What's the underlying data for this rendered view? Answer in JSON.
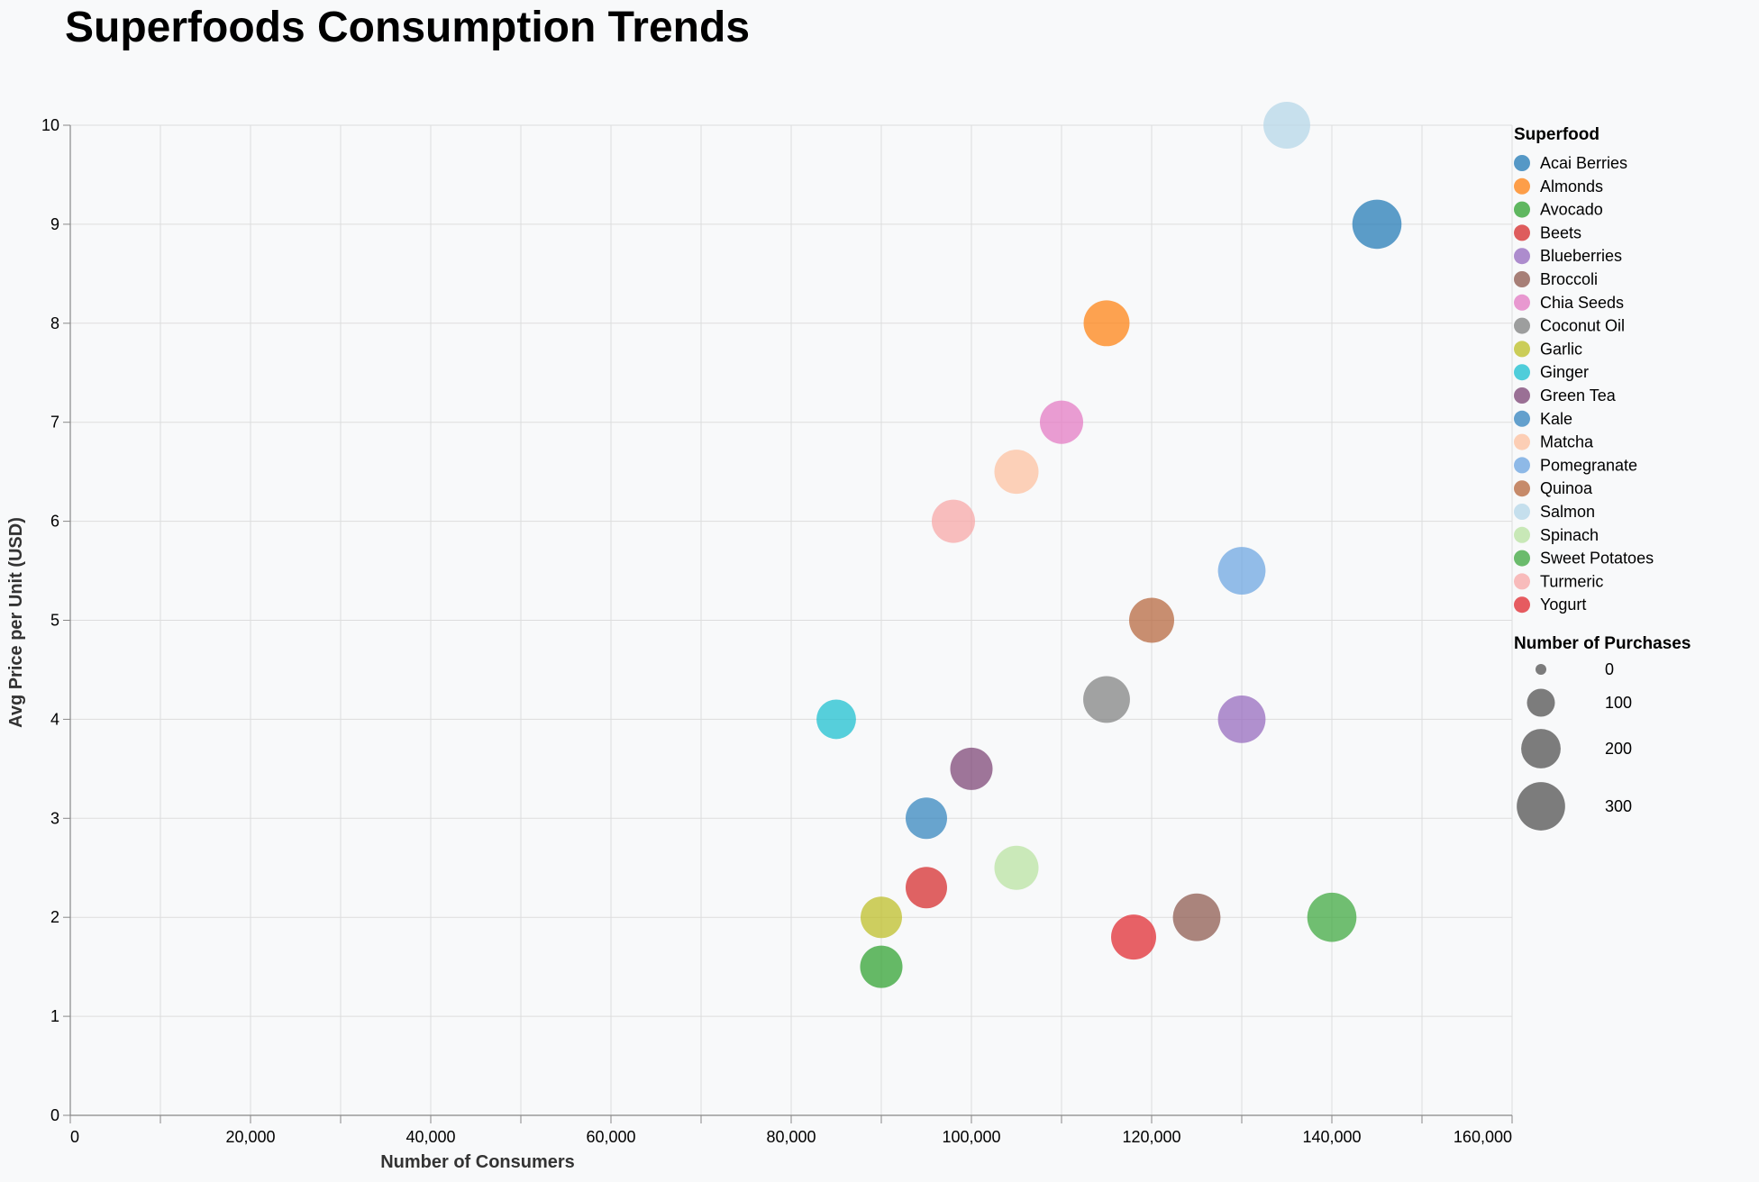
{
  "chart_data": {
    "type": "scatter",
    "title": "Superfoods Consumption Trends",
    "xlabel": "Number of Consumers",
    "ylabel": "Avg Price per Unit (USD)",
    "xlim": [
      0,
      160000
    ],
    "ylim": [
      0,
      10
    ],
    "x_ticks": [
      0,
      20000,
      40000,
      60000,
      80000,
      100000,
      120000,
      140000,
      160000
    ],
    "x_tick_labels": [
      "0",
      "20,000",
      "40,000",
      "60,000",
      "80,000",
      "100,000",
      "120,000",
      "140,000",
      "160,000"
    ],
    "y_ticks": [
      0,
      1,
      2,
      3,
      4,
      5,
      6,
      7,
      8,
      9,
      10
    ],
    "y_tick_labels": [
      "0",
      "1",
      "2",
      "3",
      "4",
      "5",
      "6",
      "7",
      "8",
      "9",
      "10"
    ],
    "grid": true,
    "legend_position": "right",
    "color_legend_title": "Superfood",
    "size_legend_title": "Number of Purchases",
    "size_legend_values": [
      0,
      100,
      200,
      300
    ],
    "size_legend_labels": [
      "0",
      "100",
      "200",
      "300"
    ],
    "size_domain_max": 350,
    "series": [
      {
        "name": "Acai Berries",
        "color": "#1f77b4",
        "x": 145000,
        "y": 9.0,
        "size": 310
      },
      {
        "name": "Almonds",
        "color": "#ff7f0e",
        "x": 115000,
        "y": 8.0,
        "size": 270
      },
      {
        "name": "Avocado",
        "color": "#2ca02c",
        "x": 90000,
        "y": 1.5,
        "size": 230
      },
      {
        "name": "Beets",
        "color": "#d62728",
        "x": 95000,
        "y": 2.3,
        "size": 220
      },
      {
        "name": "Blueberries",
        "color": "#9467bd",
        "x": 130000,
        "y": 4.0,
        "size": 290
      },
      {
        "name": "Broccoli",
        "color": "#8c564b",
        "x": 125000,
        "y": 2.0,
        "size": 290
      },
      {
        "name": "Chia Seeds",
        "color": "#e377c2",
        "x": 110000,
        "y": 7.0,
        "size": 240
      },
      {
        "name": "Coconut Oil",
        "color": "#7f7f7f",
        "x": 115000,
        "y": 4.2,
        "size": 280
      },
      {
        "name": "Garlic",
        "color": "#bcbd22",
        "x": 90000,
        "y": 2.0,
        "size": 220
      },
      {
        "name": "Ginger",
        "color": "#17becf",
        "x": 85000,
        "y": 4.0,
        "size": 200
      },
      {
        "name": "Green Tea",
        "color": "#7b4173",
        "x": 100000,
        "y": 3.5,
        "size": 230
      },
      {
        "name": "Kale",
        "color": "#3182bd",
        "x": 95000,
        "y": 3.0,
        "size": 220
      },
      {
        "name": "Matcha",
        "color": "#fdbf9e",
        "x": 105000,
        "y": 6.5,
        "size": 250
      },
      {
        "name": "Pomegranate",
        "color": "#6ba3e0",
        "x": 130000,
        "y": 5.5,
        "size": 290
      },
      {
        "name": "Quinoa",
        "color": "#b5643a",
        "x": 120000,
        "y": 5.0,
        "size": 260
      },
      {
        "name": "Salmon",
        "color": "#b4d5e8",
        "x": 135000,
        "y": 10.0,
        "size": 280
      },
      {
        "name": "Spinach",
        "color": "#b8e2a0",
        "x": 105000,
        "y": 2.5,
        "size": 250
      },
      {
        "name": "Sweet Potatoes",
        "color": "#3ca63c",
        "x": 140000,
        "y": 2.0,
        "size": 310
      },
      {
        "name": "Turmeric",
        "color": "#f8a5a5",
        "x": 98000,
        "y": 6.0,
        "size": 240
      },
      {
        "name": "Yogurt",
        "color": "#e0262c",
        "x": 118000,
        "y": 1.8,
        "size": 260
      }
    ]
  }
}
